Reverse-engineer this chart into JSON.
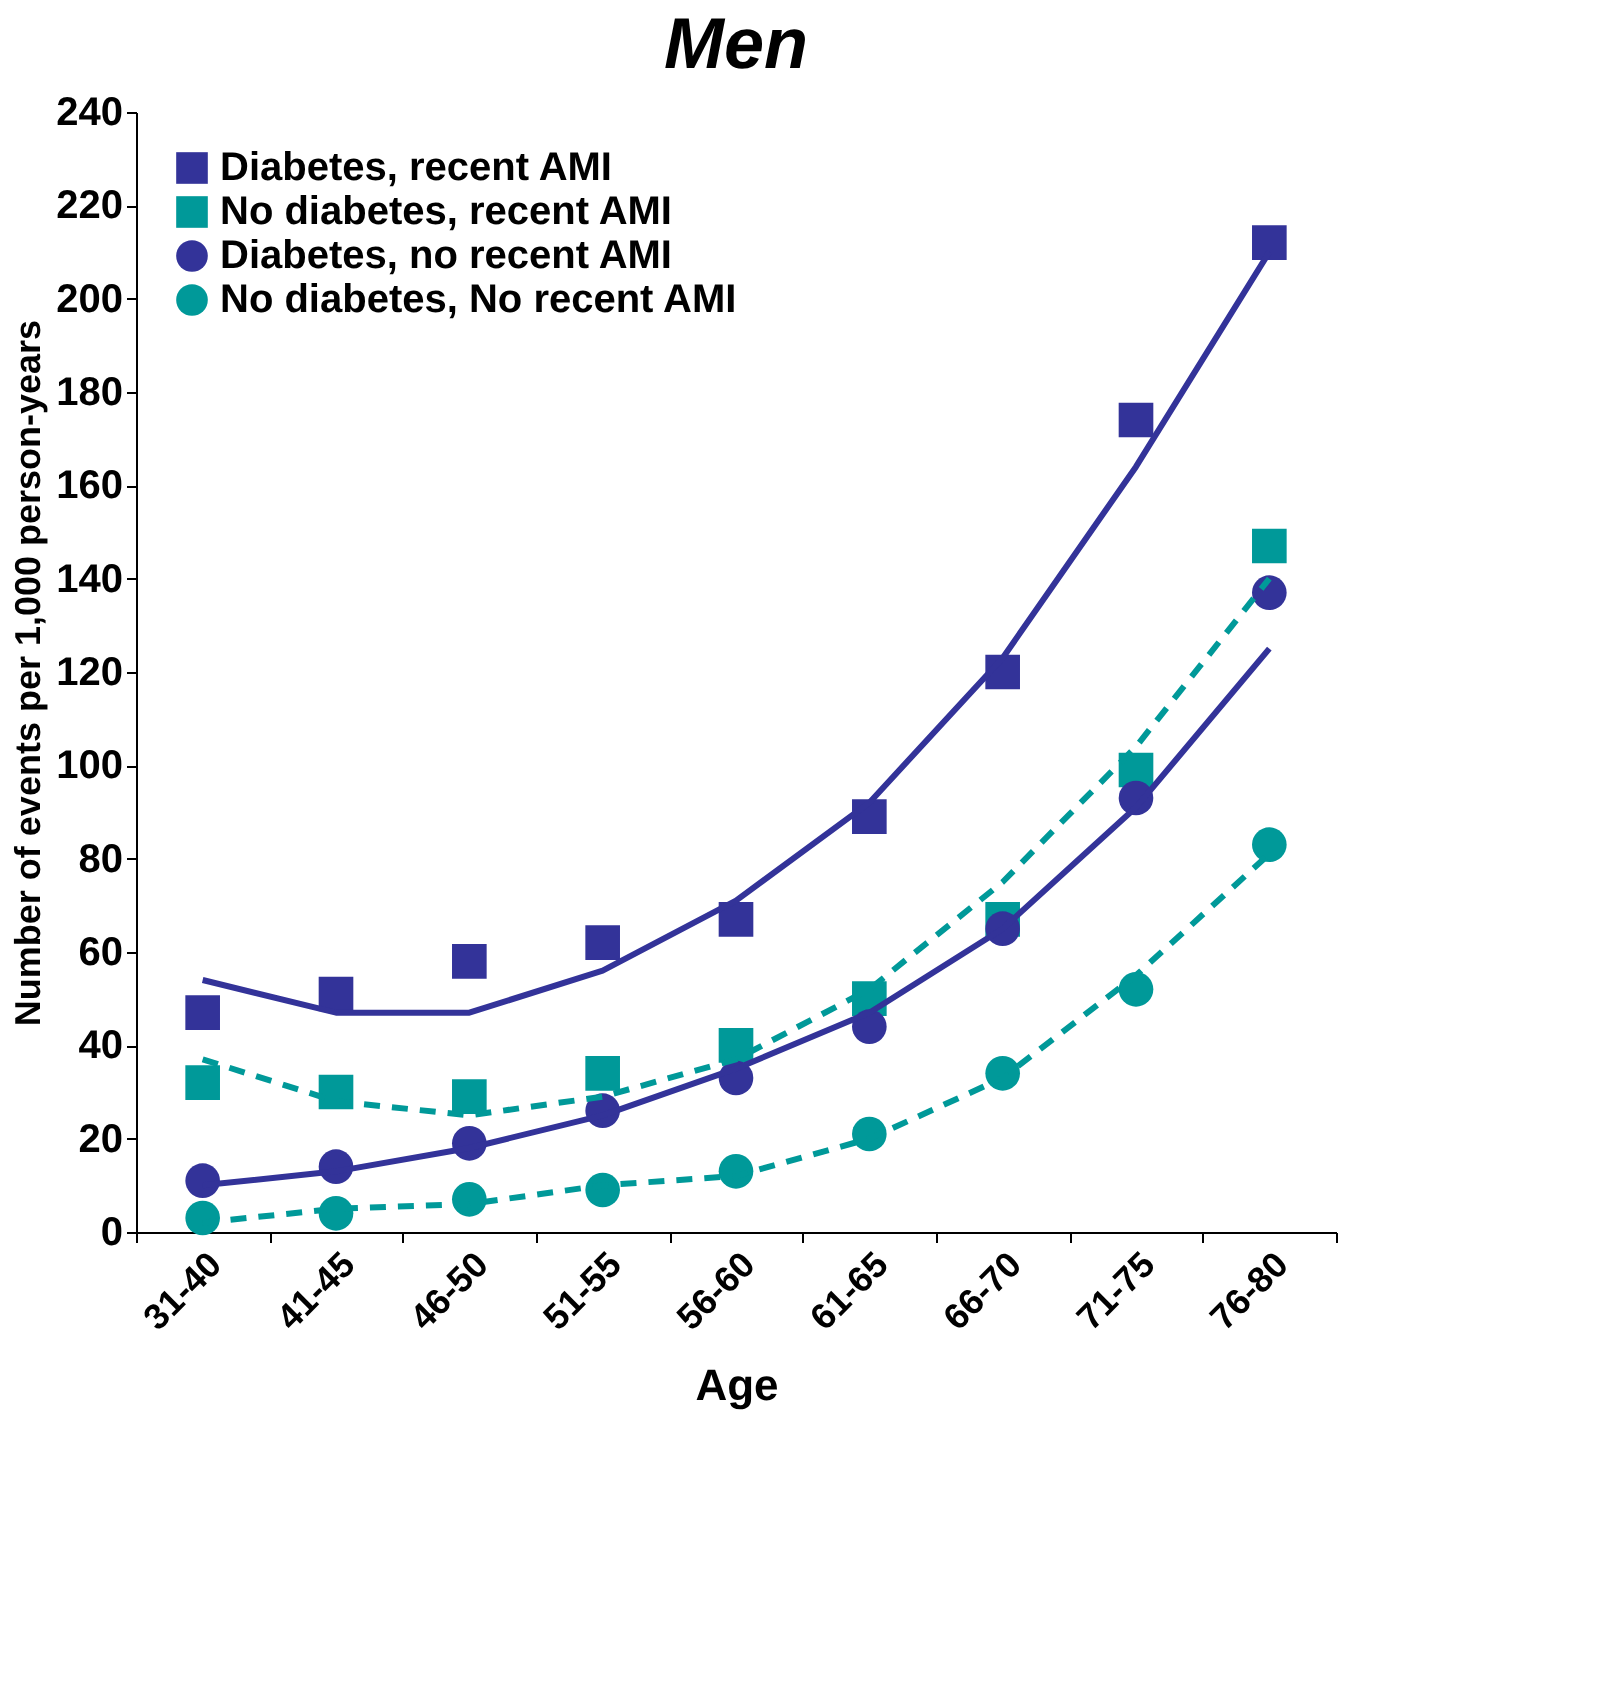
{
  "chart_data": {
    "type": "scatter",
    "title": "Men",
    "xlabel": "Age",
    "ylabel": "Number of events per 1,000 person-years",
    "categories": [
      "31-40",
      "41-45",
      "46-50",
      "51-55",
      "56-60",
      "61-65",
      "66-70",
      "71-75",
      "76-80"
    ],
    "ylim": [
      0,
      240
    ],
    "yticks": [
      0,
      20,
      40,
      60,
      80,
      100,
      120,
      140,
      160,
      180,
      200,
      220,
      240
    ],
    "grid": false,
    "legend": "top left",
    "series": [
      {
        "name": "Diabetes, recent AMI",
        "color": "#333399",
        "marker": "square",
        "values": [
          47,
          51,
          58,
          62,
          67,
          89,
          120,
          174,
          212
        ]
      },
      {
        "name": "No diabetes, recent AMI",
        "color": "#009999",
        "marker": "square",
        "values": [
          32,
          30,
          29,
          34,
          40,
          50,
          67,
          99,
          147
        ]
      },
      {
        "name": "Diabetes, no recent AMI",
        "color": "#333399",
        "marker": "circle",
        "values": [
          11,
          14,
          19,
          26,
          33,
          44,
          65,
          93,
          137
        ]
      },
      {
        "name": "No diabetes, No recent AMI",
        "color": "#009999",
        "marker": "circle",
        "values": [
          3,
          4,
          7,
          9,
          13,
          21,
          34,
          52,
          83
        ]
      },
      {
        "type": "line",
        "color": "#333399",
        "marker": "none",
        "line_style": "solid",
        "values": [
          54,
          47,
          47,
          56,
          71,
          92,
          123,
          164,
          210
        ]
      },
      {
        "type": "line",
        "color": "#009999",
        "marker": "none",
        "line_style": "dashed",
        "values": [
          37,
          28,
          25,
          29,
          37,
          52,
          75,
          104,
          140
        ]
      },
      {
        "type": "line",
        "color": "#333399",
        "marker": "none",
        "line_style": "solid",
        "values": [
          10,
          13,
          18,
          25,
          35,
          47,
          65,
          91,
          125
        ]
      },
      {
        "type": "line",
        "color": "#009999",
        "marker": "none",
        "line_style": "dashed",
        "values": [
          2,
          5,
          6,
          10,
          12,
          20,
          33,
          55,
          81
        ]
      }
    ]
  }
}
